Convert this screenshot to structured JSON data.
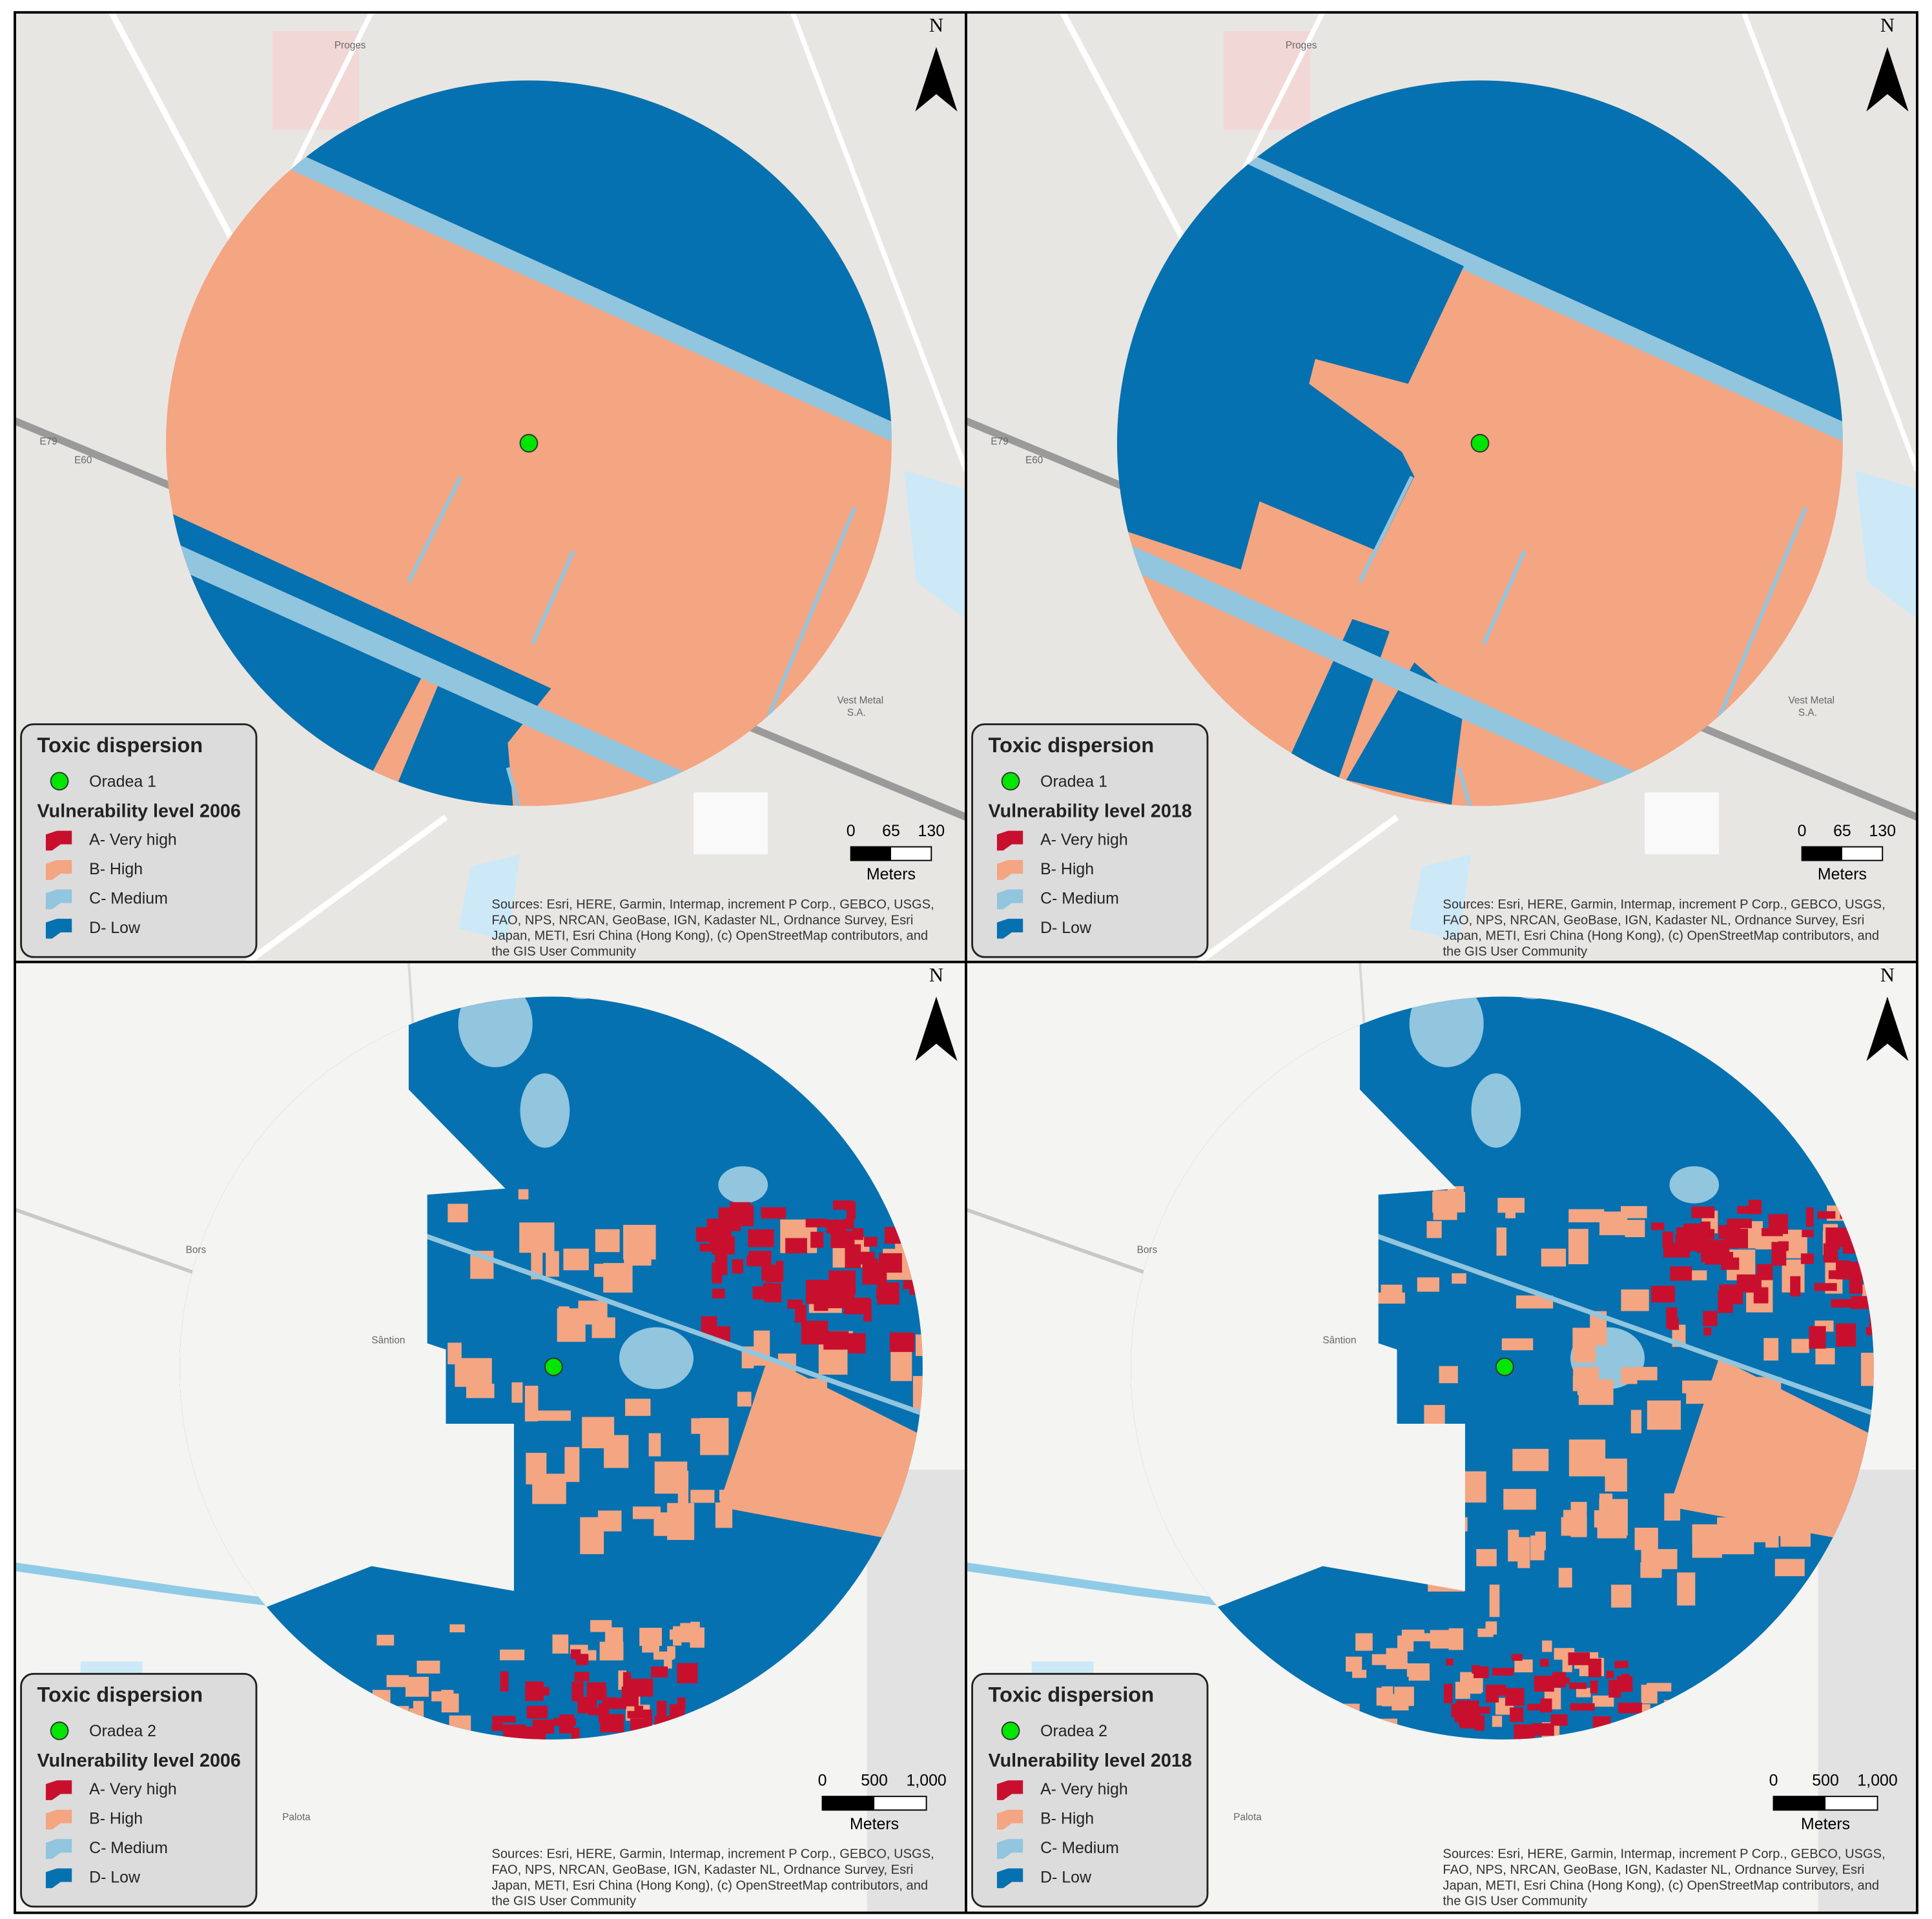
{
  "legend_colors": [
    "#c8102e",
    "#f4a582",
    "#92c5de",
    "#0571b0"
  ],
  "point_color": "#00e600",
  "panels": [
    {
      "legend": {
        "title": "Toxic dispersion",
        "point": "Oradea 1",
        "subtitle": "Vulnerability level 2006",
        "classes": [
          "A- Very high",
          "B- High",
          "C- Medium",
          "D- Low"
        ]
      },
      "scale": {
        "ticks": [
          "0",
          "65",
          "130"
        ],
        "unit": "Meters"
      },
      "north": "N",
      "map_labels": [
        "Proges",
        "E79",
        "E60",
        "Vest Metal",
        "S.A."
      ],
      "sources": [
        "Sources: Esri, HERE, Garmin, Intermap, increment P Corp., GEBCO, USGS,",
        "FAO, NPS, NRCAN, GeoBase, IGN, Kadaster NL, Ordnance Survey, Esri",
        "Japan, METI, Esri China (Hong Kong), (c) OpenStreetMap contributors, and",
        "the GIS User Community"
      ]
    },
    {
      "legend": {
        "title": "Toxic dispersion",
        "point": "Oradea 1",
        "subtitle": "Vulnerability level 2018",
        "classes": [
          "A- Very high",
          "B- High",
          "C- Medium",
          "D- Low"
        ]
      },
      "scale": {
        "ticks": [
          "0",
          "65",
          "130"
        ],
        "unit": "Meters"
      },
      "north": "N",
      "map_labels": [
        "Proges",
        "E79",
        "E60",
        "Vest Metal",
        "S.A."
      ],
      "sources": [
        "Sources: Esri, HERE, Garmin, Intermap, increment P Corp., GEBCO, USGS,",
        "FAO, NPS, NRCAN, GeoBase, IGN, Kadaster NL, Ordnance Survey, Esri",
        "Japan, METI, Esri China (Hong Kong), (c) OpenStreetMap contributors, and",
        "the GIS User Community"
      ]
    },
    {
      "legend": {
        "title": "Toxic dispersion",
        "point": "Oradea 2",
        "subtitle": "Vulnerability level 2006",
        "classes": [
          "A- Very high",
          "B- High",
          "C- Medium",
          "D- Low"
        ]
      },
      "scale": {
        "ticks": [
          "0",
          "500",
          "1,000"
        ],
        "unit": "Meters"
      },
      "north": "N",
      "map_labels": [
        "Bors",
        "Sântion",
        "Palota"
      ],
      "sources": [
        "Sources: Esri, HERE, Garmin, Intermap, increment P Corp., GEBCO, USGS,",
        "FAO, NPS, NRCAN, GeoBase, IGN, Kadaster NL, Ordnance Survey, Esri",
        "Japan, METI, Esri China (Hong Kong), (c) OpenStreetMap contributors, and",
        "the GIS User Community"
      ]
    },
    {
      "legend": {
        "title": "Toxic dispersion",
        "point": "Oradea 2",
        "subtitle": "Vulnerability level 2018",
        "classes": [
          "A- Very high",
          "B- High",
          "C- Medium",
          "D- Low"
        ]
      },
      "scale": {
        "ticks": [
          "0",
          "500",
          "1,000"
        ],
        "unit": "Meters"
      },
      "north": "N",
      "map_labels": [
        "Bors",
        "Sântion",
        "Palota"
      ],
      "sources": [
        "Sources: Esri, HERE, Garmin, Intermap, increment P Corp., GEBCO, USGS,",
        "FAO, NPS, NRCAN, GeoBase, IGN, Kadaster NL, Ordnance Survey, Esri",
        "Japan, METI, Esri China (Hong Kong), (c) OpenStreetMap contributors, and",
        "the GIS User Community"
      ]
    }
  ]
}
